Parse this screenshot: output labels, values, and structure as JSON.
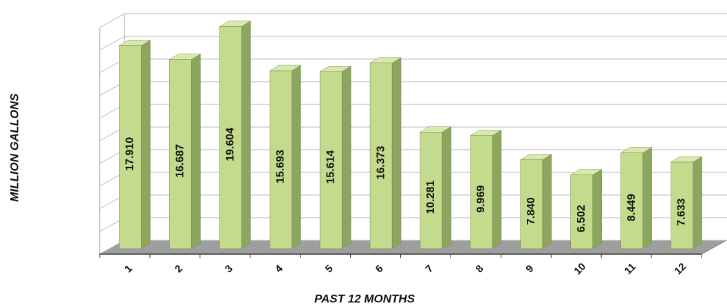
{
  "chart_data": {
    "type": "bar3d",
    "x_label": "PAST 12 MONTHS",
    "y_label": "MILLION GALLONS",
    "categories": [
      "1",
      "2",
      "3",
      "4",
      "5",
      "6",
      "7",
      "8",
      "9",
      "10",
      "11",
      "12"
    ],
    "values": [
      17.91,
      16.687,
      19.604,
      15.693,
      15.614,
      16.373,
      10.281,
      9.969,
      7.84,
      6.502,
      8.449,
      7.633
    ],
    "value_labels": [
      "17.910",
      "16.687",
      "19.604",
      "15.693",
      "15.614",
      "16.373",
      "10.281",
      "9.969",
      "7.840",
      "6.502",
      "8.449",
      "7.633"
    ],
    "color": "#c4da8c",
    "ylim": [
      0,
      20
    ],
    "yticks": [
      0,
      2,
      4,
      6,
      8,
      10,
      12,
      14,
      16,
      18,
      20
    ],
    "grid": true
  }
}
